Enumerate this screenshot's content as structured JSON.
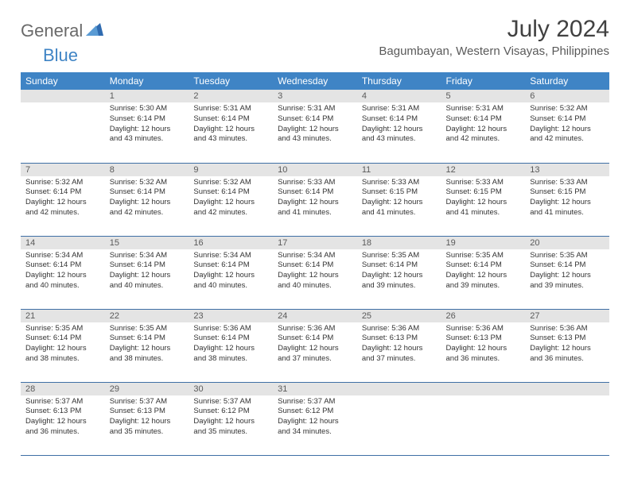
{
  "logo": {
    "text1": "General",
    "text2": "Blue"
  },
  "title": "July 2024",
  "location": "Bagumbayan, Western Visayas, Philippines",
  "colors": {
    "header_bg": "#3f84c5",
    "header_text": "#ffffff",
    "daynum_bg": "#e4e4e4",
    "row_border": "#3f6fa5",
    "logo_gray": "#6a6a6a",
    "logo_blue": "#3f84c5",
    "title_color": "#414141",
    "body_text": "#333333"
  },
  "dayNames": [
    "Sunday",
    "Monday",
    "Tuesday",
    "Wednesday",
    "Thursday",
    "Friday",
    "Saturday"
  ],
  "weeks": [
    [
      {
        "num": "",
        "lines": []
      },
      {
        "num": "1",
        "lines": [
          "Sunrise: 5:30 AM",
          "Sunset: 6:14 PM",
          "Daylight: 12 hours and 43 minutes."
        ]
      },
      {
        "num": "2",
        "lines": [
          "Sunrise: 5:31 AM",
          "Sunset: 6:14 PM",
          "Daylight: 12 hours and 43 minutes."
        ]
      },
      {
        "num": "3",
        "lines": [
          "Sunrise: 5:31 AM",
          "Sunset: 6:14 PM",
          "Daylight: 12 hours and 43 minutes."
        ]
      },
      {
        "num": "4",
        "lines": [
          "Sunrise: 5:31 AM",
          "Sunset: 6:14 PM",
          "Daylight: 12 hours and 43 minutes."
        ]
      },
      {
        "num": "5",
        "lines": [
          "Sunrise: 5:31 AM",
          "Sunset: 6:14 PM",
          "Daylight: 12 hours and 42 minutes."
        ]
      },
      {
        "num": "6",
        "lines": [
          "Sunrise: 5:32 AM",
          "Sunset: 6:14 PM",
          "Daylight: 12 hours and 42 minutes."
        ]
      }
    ],
    [
      {
        "num": "7",
        "lines": [
          "Sunrise: 5:32 AM",
          "Sunset: 6:14 PM",
          "Daylight: 12 hours and 42 minutes."
        ]
      },
      {
        "num": "8",
        "lines": [
          "Sunrise: 5:32 AM",
          "Sunset: 6:14 PM",
          "Daylight: 12 hours and 42 minutes."
        ]
      },
      {
        "num": "9",
        "lines": [
          "Sunrise: 5:32 AM",
          "Sunset: 6:14 PM",
          "Daylight: 12 hours and 42 minutes."
        ]
      },
      {
        "num": "10",
        "lines": [
          "Sunrise: 5:33 AM",
          "Sunset: 6:14 PM",
          "Daylight: 12 hours and 41 minutes."
        ]
      },
      {
        "num": "11",
        "lines": [
          "Sunrise: 5:33 AM",
          "Sunset: 6:15 PM",
          "Daylight: 12 hours and 41 minutes."
        ]
      },
      {
        "num": "12",
        "lines": [
          "Sunrise: 5:33 AM",
          "Sunset: 6:15 PM",
          "Daylight: 12 hours and 41 minutes."
        ]
      },
      {
        "num": "13",
        "lines": [
          "Sunrise: 5:33 AM",
          "Sunset: 6:15 PM",
          "Daylight: 12 hours and 41 minutes."
        ]
      }
    ],
    [
      {
        "num": "14",
        "lines": [
          "Sunrise: 5:34 AM",
          "Sunset: 6:14 PM",
          "Daylight: 12 hours and 40 minutes."
        ]
      },
      {
        "num": "15",
        "lines": [
          "Sunrise: 5:34 AM",
          "Sunset: 6:14 PM",
          "Daylight: 12 hours and 40 minutes."
        ]
      },
      {
        "num": "16",
        "lines": [
          "Sunrise: 5:34 AM",
          "Sunset: 6:14 PM",
          "Daylight: 12 hours and 40 minutes."
        ]
      },
      {
        "num": "17",
        "lines": [
          "Sunrise: 5:34 AM",
          "Sunset: 6:14 PM",
          "Daylight: 12 hours and 40 minutes."
        ]
      },
      {
        "num": "18",
        "lines": [
          "Sunrise: 5:35 AM",
          "Sunset: 6:14 PM",
          "Daylight: 12 hours and 39 minutes."
        ]
      },
      {
        "num": "19",
        "lines": [
          "Sunrise: 5:35 AM",
          "Sunset: 6:14 PM",
          "Daylight: 12 hours and 39 minutes."
        ]
      },
      {
        "num": "20",
        "lines": [
          "Sunrise: 5:35 AM",
          "Sunset: 6:14 PM",
          "Daylight: 12 hours and 39 minutes."
        ]
      }
    ],
    [
      {
        "num": "21",
        "lines": [
          "Sunrise: 5:35 AM",
          "Sunset: 6:14 PM",
          "Daylight: 12 hours and 38 minutes."
        ]
      },
      {
        "num": "22",
        "lines": [
          "Sunrise: 5:35 AM",
          "Sunset: 6:14 PM",
          "Daylight: 12 hours and 38 minutes."
        ]
      },
      {
        "num": "23",
        "lines": [
          "Sunrise: 5:36 AM",
          "Sunset: 6:14 PM",
          "Daylight: 12 hours and 38 minutes."
        ]
      },
      {
        "num": "24",
        "lines": [
          "Sunrise: 5:36 AM",
          "Sunset: 6:14 PM",
          "Daylight: 12 hours and 37 minutes."
        ]
      },
      {
        "num": "25",
        "lines": [
          "Sunrise: 5:36 AM",
          "Sunset: 6:13 PM",
          "Daylight: 12 hours and 37 minutes."
        ]
      },
      {
        "num": "26",
        "lines": [
          "Sunrise: 5:36 AM",
          "Sunset: 6:13 PM",
          "Daylight: 12 hours and 36 minutes."
        ]
      },
      {
        "num": "27",
        "lines": [
          "Sunrise: 5:36 AM",
          "Sunset: 6:13 PM",
          "Daylight: 12 hours and 36 minutes."
        ]
      }
    ],
    [
      {
        "num": "28",
        "lines": [
          "Sunrise: 5:37 AM",
          "Sunset: 6:13 PM",
          "Daylight: 12 hours and 36 minutes."
        ]
      },
      {
        "num": "29",
        "lines": [
          "Sunrise: 5:37 AM",
          "Sunset: 6:13 PM",
          "Daylight: 12 hours and 35 minutes."
        ]
      },
      {
        "num": "30",
        "lines": [
          "Sunrise: 5:37 AM",
          "Sunset: 6:12 PM",
          "Daylight: 12 hours and 35 minutes."
        ]
      },
      {
        "num": "31",
        "lines": [
          "Sunrise: 5:37 AM",
          "Sunset: 6:12 PM",
          "Daylight: 12 hours and 34 minutes."
        ]
      },
      {
        "num": "",
        "lines": []
      },
      {
        "num": "",
        "lines": []
      },
      {
        "num": "",
        "lines": []
      }
    ]
  ]
}
